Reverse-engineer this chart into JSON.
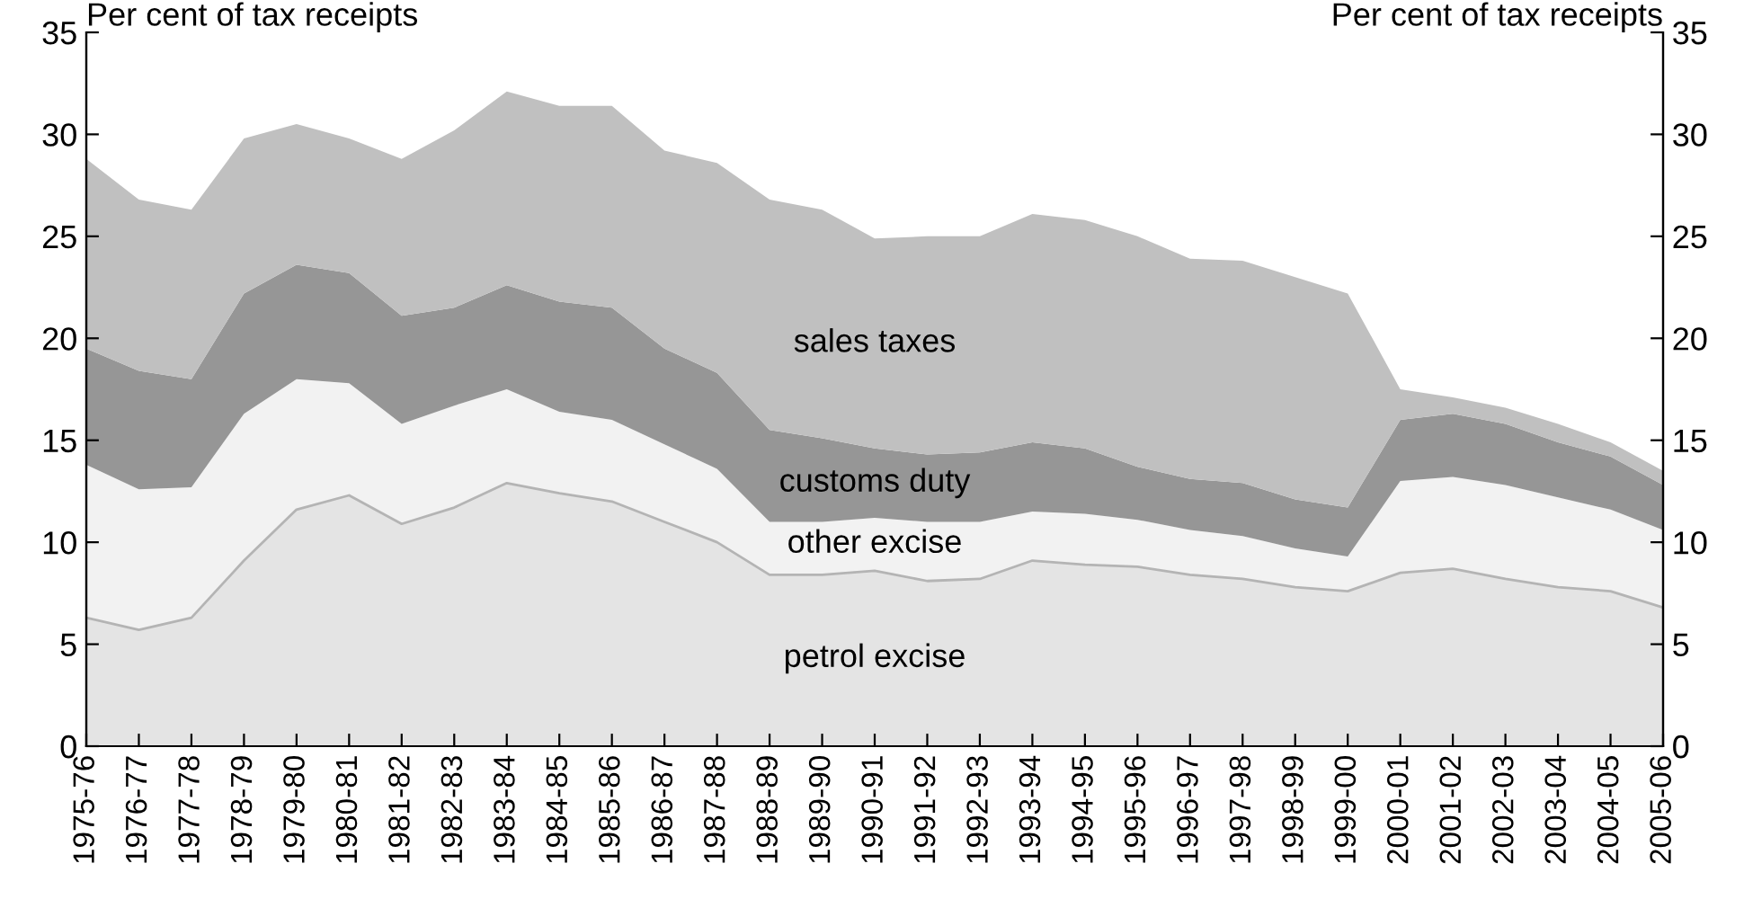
{
  "chart_data": {
    "type": "area",
    "stacked": true,
    "ylabel": "Per cent of tax receipts",
    "y2label": "Per cent of tax receipts",
    "categories": [
      "1975-76",
      "1976-77",
      "1977-78",
      "1978-79",
      "1979-80",
      "1980-81",
      "1981-82",
      "1982-83",
      "1983-84",
      "1984-85",
      "1985-86",
      "1986-87",
      "1987-88",
      "1988-89",
      "1989-90",
      "1990-91",
      "1991-92",
      "1992-93",
      "1993-94",
      "1994-95",
      "1995-96",
      "1996-97",
      "1997-98",
      "1998-99",
      "1999-00",
      "2000-01",
      "2001-02",
      "2002-03",
      "2003-04",
      "2004-05",
      "2005-06"
    ],
    "series": [
      {
        "name": "petrol excise",
        "color": "#e4e4e4",
        "values": [
          6.3,
          5.7,
          6.3,
          9.1,
          11.6,
          12.3,
          10.9,
          11.7,
          12.9,
          12.4,
          12.0,
          11.0,
          10.0,
          8.4,
          8.4,
          8.6,
          8.1,
          8.2,
          9.1,
          8.9,
          8.8,
          8.4,
          8.2,
          7.8,
          7.6,
          8.5,
          8.7,
          8.2,
          7.8,
          7.6,
          6.8
        ]
      },
      {
        "name": "other excise",
        "color": "#f2f2f2",
        "values": [
          7.5,
          6.9,
          6.4,
          7.2,
          6.4,
          5.5,
          4.9,
          5.0,
          4.6,
          4.0,
          4.0,
          3.8,
          3.6,
          2.6,
          2.6,
          2.6,
          2.9,
          2.8,
          2.4,
          2.5,
          2.3,
          2.2,
          2.1,
          1.9,
          1.7,
          4.5,
          4.5,
          4.6,
          4.4,
          4.0,
          3.8
        ]
      },
      {
        "name": "customs duty",
        "color": "#969696",
        "values": [
          5.7,
          5.8,
          5.3,
          5.9,
          5.6,
          5.4,
          5.3,
          4.8,
          5.1,
          5.4,
          5.5,
          4.7,
          4.7,
          4.5,
          4.1,
          3.4,
          3.3,
          3.4,
          3.4,
          3.2,
          2.6,
          2.5,
          2.6,
          2.4,
          2.4,
          3.0,
          3.1,
          3.0,
          2.7,
          2.6,
          2.2
        ]
      },
      {
        "name": "sales taxes",
        "color": "#c0c0c0",
        "values": [
          9.3,
          8.4,
          8.3,
          7.6,
          6.9,
          6.6,
          7.7,
          8.7,
          9.5,
          9.6,
          9.9,
          9.7,
          10.3,
          11.3,
          11.2,
          10.3,
          10.7,
          10.6,
          11.2,
          11.2,
          11.3,
          10.8,
          10.9,
          10.9,
          10.5,
          1.5,
          0.8,
          0.8,
          0.9,
          0.7,
          0.7
        ]
      }
    ],
    "ylim": [
      0,
      35
    ],
    "yticks": [
      0,
      5,
      10,
      15,
      20,
      25,
      30,
      35
    ],
    "y2lim": [
      0,
      35
    ],
    "y2ticks": [
      0,
      5,
      10,
      15,
      20,
      25,
      30,
      35
    ],
    "grid": false,
    "legend": false
  }
}
